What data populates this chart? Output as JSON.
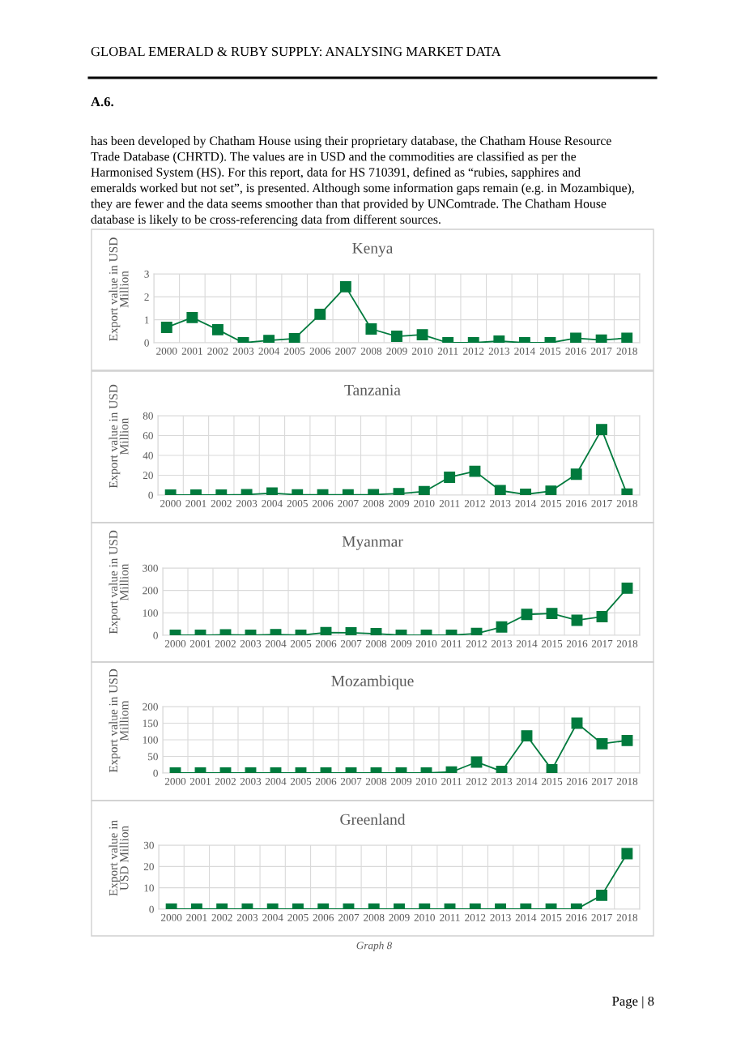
{
  "chart_data": [
    {
      "type": "line",
      "title": "Kenya",
      "ylabel": "Export value in USD\nMillion",
      "annotations": [
        "GLOBAL EMERALD & RUBY SUPPLY: ANALYSING MARKET DATA",
        "A.6.",
        "has been developed by Chatham House using their proprietary database, the Chatham House Resource\nTrade Database (CHRTD). The values are in USD and the commodities are classified as per the\nHarmonised System (HS). For this report, data for HS 710391, defined as “rubies, sapphires and\nemeralds worked but not set”, is presented. Although some information gaps remain (e.g. in Mozambique),\nthey are fewer and the data seems smoother than that provided by UNComtrade. The Chatham House\ndatabase is likely to be cross-referencing data from different sources."
      ],
      "categories": [
        "2000",
        "2001",
        "2002",
        "2003",
        "2004",
        "2005",
        "2006",
        "2007",
        "2008",
        "2009",
        "2010",
        "2011",
        "2012",
        "2013",
        "2014",
        "2015",
        "2016",
        "2017",
        "2018"
      ],
      "series": [
        {
          "color": "#007a3d",
          "values": [
            0.67,
            1.1,
            0.57,
            0,
            0.1,
            0.18,
            1.24,
            2.44,
            0.6,
            0.28,
            0.35,
            0,
            0,
            0.07,
            0,
            0,
            0.2,
            0.12,
            0.2
          ]
        }
      ],
      "ylim": [
        0,
        3
      ],
      "yticks": [
        0,
        1,
        2,
        3
      ],
      "grid": true,
      "marker": "square",
      "line_style": "solid"
    },
    {
      "type": "line",
      "title": "Tanzania",
      "ylabel": "Export value in USD\nMillion",
      "categories": [
        "2000",
        "2001",
        "2002",
        "2003",
        "2004",
        "2005",
        "2006",
        "2007",
        "2008",
        "2009",
        "2010",
        "2011",
        "2012",
        "2013",
        "2014",
        "2015",
        "2016",
        "2017",
        "2018"
      ],
      "series": [
        {
          "color": "#007a3d",
          "values": [
            0,
            0,
            0,
            0.5,
            2,
            0.3,
            0.3,
            0.2,
            0.5,
            1.5,
            3.5,
            18,
            24,
            4.5,
            0.8,
            4,
            21,
            66,
            1
          ]
        }
      ],
      "ylim": [
        0,
        80
      ],
      "yticks": [
        0,
        20,
        40,
        60,
        80
      ],
      "grid": true,
      "marker": "square",
      "line_style": "solid"
    },
    {
      "type": "line",
      "title": "Myanmar",
      "ylabel": "Export value in USD\nMillion",
      "categories": [
        "2000",
        "2001",
        "2002",
        "2003",
        "2004",
        "2005",
        "2006",
        "2007",
        "2008",
        "2009",
        "2010",
        "2011",
        "2012",
        "2013",
        "2014",
        "2015",
        "2016",
        "2017",
        "2018"
      ],
      "series": [
        {
          "color": "#007a3d",
          "values": [
            0,
            0,
            2,
            0,
            3,
            0,
            12,
            11,
            7,
            0,
            0,
            0,
            8,
            37,
            93,
            97,
            67,
            83,
            210
          ]
        }
      ],
      "ylim": [
        0,
        300
      ],
      "yticks": [
        0,
        100,
        200,
        300
      ],
      "grid": true,
      "marker": "square",
      "line_style": "solid"
    },
    {
      "type": "line",
      "title": "Mozambique",
      "ylabel": "Export value in USD\nMilliom",
      "categories": [
        "2000",
        "2001",
        "2002",
        "2003",
        "2004",
        "2005",
        "2006",
        "2007",
        "2008",
        "2009",
        "2010",
        "2011",
        "2012",
        "2013",
        "2014",
        "2015",
        "2016",
        "2017",
        "2018"
      ],
      "series": [
        {
          "color": "#007a3d",
          "values": [
            0,
            0,
            0,
            0,
            0,
            0,
            0,
            0,
            0,
            0,
            0,
            3,
            33,
            5,
            112,
            10,
            150,
            88,
            98
          ]
        }
      ],
      "ylim": [
        0,
        200
      ],
      "yticks": [
        0,
        50,
        100,
        150,
        200
      ],
      "grid": true,
      "marker": "square",
      "line_style": "solid"
    },
    {
      "type": "line",
      "title": "Greenland",
      "ylabel": "Export value in\nUSD Million",
      "annotations": [
        "Graph 8",
        "Page | 8"
      ],
      "categories": [
        "2000",
        "2001",
        "2002",
        "2003",
        "2004",
        "2005",
        "2006",
        "2007",
        "2008",
        "2009",
        "2010",
        "2011",
        "2012",
        "2013",
        "2014",
        "2015",
        "2016",
        "2017",
        "2018"
      ],
      "series": [
        {
          "color": "#007a3d",
          "values": [
            0,
            0,
            0,
            0,
            0,
            0,
            0,
            0,
            0,
            0,
            0,
            0,
            0,
            0,
            0,
            0,
            0,
            6.5,
            26
          ]
        }
      ],
      "ylim": [
        0,
        30
      ],
      "yticks": [
        0,
        10,
        20,
        30
      ],
      "grid": true,
      "marker": "square",
      "line_style": "solid"
    }
  ]
}
